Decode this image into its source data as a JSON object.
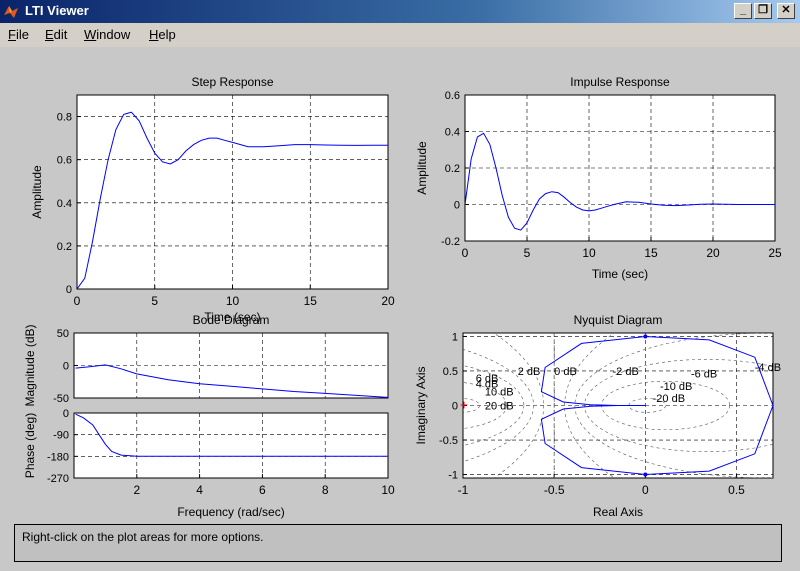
{
  "window": {
    "title": "LTI Viewer"
  },
  "menu": [
    {
      "label": "File",
      "accel": "F"
    },
    {
      "label": "Edit",
      "accel": "E"
    },
    {
      "label": "Window",
      "accel": "W"
    },
    {
      "label": "Help",
      "accel": "H"
    }
  ],
  "status": {
    "text": "Right-click on the plot areas for more options."
  },
  "chart_data": [
    {
      "type": "line",
      "title": "Step Response",
      "xlabel": "Time (sec)",
      "ylabel": "Amplitude",
      "xlim": [
        0,
        20
      ],
      "ylim": [
        0,
        0.9
      ],
      "xticks": [
        0,
        5,
        10,
        15,
        20
      ],
      "yticks": [
        0,
        0.2,
        0.4,
        0.6,
        0.8
      ],
      "grid": true,
      "series": [
        {
          "color": "#0000ff",
          "x": [
            0,
            0.5,
            1,
            1.5,
            2,
            2.5,
            3,
            3.5,
            4,
            4.5,
            5,
            5.5,
            6,
            6.5,
            7,
            7.5,
            8,
            8.5,
            9,
            9.5,
            10,
            11,
            12,
            13,
            14,
            15,
            16,
            17,
            18,
            19,
            20
          ],
          "y": [
            0,
            0.05,
            0.22,
            0.42,
            0.6,
            0.74,
            0.81,
            0.82,
            0.78,
            0.7,
            0.63,
            0.59,
            0.58,
            0.6,
            0.64,
            0.67,
            0.69,
            0.7,
            0.7,
            0.69,
            0.68,
            0.66,
            0.66,
            0.665,
            0.67,
            0.67,
            0.668,
            0.667,
            0.666,
            0.667,
            0.667
          ]
        }
      ]
    },
    {
      "type": "line",
      "title": "Impulse Response",
      "xlabel": "Time (sec)",
      "ylabel": "Amplitude",
      "xlim": [
        0,
        25
      ],
      "ylim": [
        -0.2,
        0.6
      ],
      "xticks": [
        0,
        5,
        10,
        15,
        20,
        25
      ],
      "yticks": [
        -0.2,
        0,
        0.2,
        0.4,
        0.6
      ],
      "grid": true,
      "series": [
        {
          "color": "#0000ff",
          "x": [
            0,
            0.5,
            1,
            1.5,
            2,
            2.5,
            3,
            3.5,
            4,
            4.5,
            5,
            5.5,
            6,
            6.5,
            7,
            7.5,
            8,
            8.5,
            9,
            9.5,
            10,
            10.5,
            11,
            11.5,
            12,
            13,
            14,
            15,
            16,
            17,
            18,
            19,
            20,
            21,
            22,
            23,
            24,
            25
          ],
          "y": [
            0,
            0.25,
            0.37,
            0.39,
            0.33,
            0.2,
            0.05,
            -0.07,
            -0.13,
            -0.14,
            -0.1,
            -0.03,
            0.03,
            0.06,
            0.07,
            0.065,
            0.04,
            0.01,
            -0.015,
            -0.03,
            -0.035,
            -0.03,
            -0.02,
            -0.01,
            0.0,
            0.015,
            0.012,
            0.003,
            -0.004,
            -0.006,
            -0.003,
            0.001,
            0.003,
            0.001,
            0,
            0,
            0,
            0
          ]
        }
      ]
    },
    {
      "type": "line",
      "title": "Bode Diagram",
      "xlabel": "Frequency (rad/sec)",
      "panels": [
        {
          "ylabel": "Magnitude (dB)",
          "ylim": [
            -50,
            50
          ],
          "yticks": [
            -50,
            0,
            50
          ],
          "series": [
            {
              "color": "#0000ff",
              "x": [
                0.05,
                0.5,
                1,
                1.5,
                2,
                3,
                4,
                5,
                6,
                7,
                8,
                9,
                10
              ],
              "y": [
                -4,
                -2,
                1,
                -5,
                -13,
                -22,
                -28,
                -32,
                -36,
                -40,
                -43,
                -46,
                -49
              ]
            }
          ]
        },
        {
          "ylabel": "Phase (deg)",
          "ylim": [
            -270,
            0
          ],
          "yticks": [
            -270,
            -180,
            -90,
            0
          ],
          "series": [
            {
              "color": "#0000ff",
              "x": [
                0.05,
                0.3,
                0.6,
                0.8,
                1,
                1.2,
                1.5,
                2,
                3,
                4,
                5,
                6,
                7,
                8,
                9,
                10
              ],
              "y": [
                -5,
                -20,
                -50,
                -90,
                -130,
                -160,
                -175,
                -180,
                -180,
                -180,
                -180,
                -180,
                -180,
                -180,
                -180,
                -180
              ]
            }
          ]
        }
      ],
      "xlim": [
        0,
        10
      ],
      "xticks": [
        2,
        4,
        6,
        8,
        10
      ],
      "grid": true
    },
    {
      "type": "line",
      "title": "Nyquist Diagram",
      "xlabel": "Real Axis",
      "ylabel": "Imaginary Axis",
      "xlim": [
        -1,
        0.7
      ],
      "ylim": [
        -1.05,
        1.05
      ],
      "xticks": [
        -1,
        -0.5,
        0,
        0.5
      ],
      "yticks": [
        -1,
        -0.5,
        0,
        0.5,
        1
      ],
      "grid": true,
      "grid_labels": [
        "6 dB",
        "4 dB",
        "10 dB",
        "20 dB",
        "2 dB",
        "0 dB",
        "-2 dB",
        "-4 dB",
        "-6 dB",
        "-10 dB",
        "-20 dB"
      ],
      "series": [
        {
          "color": "#0000ff",
          "x": [
            0,
            0.35,
            0.6,
            0.7,
            0.6,
            0.35,
            0,
            -0.35,
            -0.55,
            -0.57,
            -0.45,
            -0.3,
            -0.15,
            0,
            -0.15,
            -0.3,
            -0.45,
            -0.57,
            -0.55,
            -0.35,
            0
          ],
          "y": [
            1,
            0.95,
            0.7,
            0,
            -0.7,
            -0.95,
            -1,
            -0.9,
            -0.55,
            -0.2,
            -0.05,
            -0.01,
            0,
            0,
            0,
            0.01,
            0.05,
            0.2,
            0.55,
            0.9,
            1
          ]
        }
      ]
    }
  ]
}
